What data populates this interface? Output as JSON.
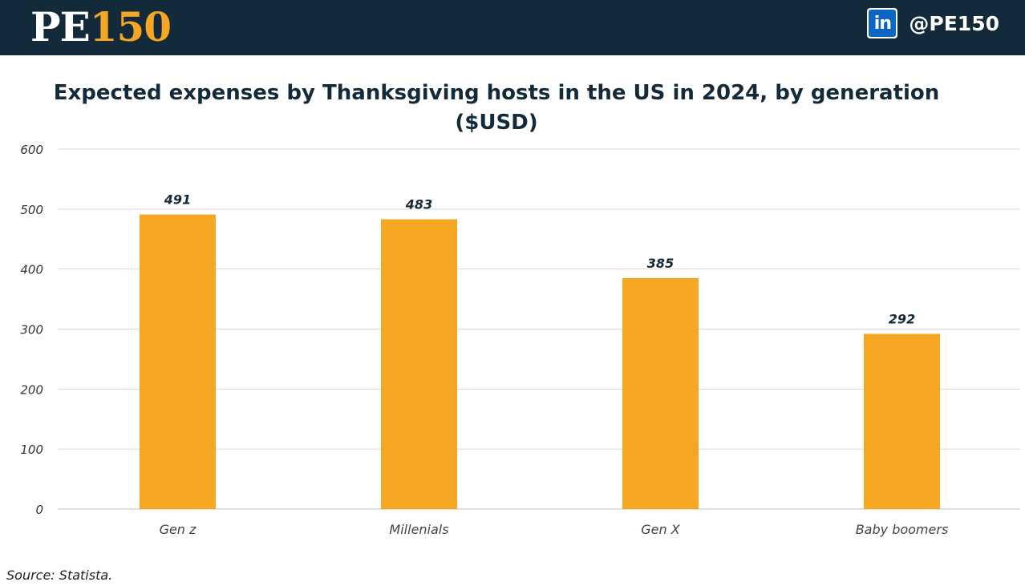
{
  "header": {
    "logo_pe": "PE",
    "logo_num": "150",
    "linkedin_icon": "linkedin-icon",
    "linkedin_text": "in",
    "handle": "@PE150"
  },
  "source": "Source: Statista.",
  "colors": {
    "header_bg": "#132a3a",
    "bar": "#f5a623",
    "title": "#132a3a",
    "grid": "#d9d9d9",
    "linkedin": "#0a66c2"
  },
  "chart_data": {
    "type": "bar",
    "title_line1": "Expected expenses by Thanksgiving hosts in the US in 2024, by generation",
    "title_line2": "($USD)",
    "categories": [
      "Gen z",
      "Millenials",
      "Gen X",
      "Baby boomers"
    ],
    "values": [
      491,
      483,
      385,
      292
    ],
    "ylim": [
      0,
      600
    ],
    "yticks": [
      0,
      100,
      200,
      300,
      400,
      500,
      600
    ],
    "grid": true,
    "data_labels": true,
    "legend": "none"
  }
}
